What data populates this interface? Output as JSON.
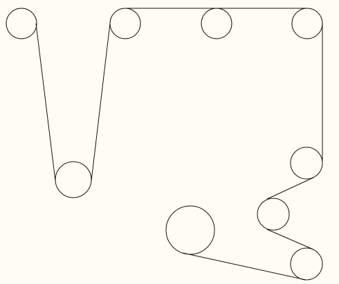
{
  "diagram": {
    "type": "belt-pulley-layout",
    "colors": {
      "background": "#fffdf3",
      "stroke": "#111111"
    },
    "pulleys": [
      {
        "id": "p1"
      },
      {
        "id": "p2"
      },
      {
        "id": "p3"
      },
      {
        "id": "p4"
      },
      {
        "id": "p5"
      },
      {
        "id": "p6"
      },
      {
        "id": "p7"
      },
      {
        "id": "p8"
      },
      {
        "id": "p9"
      }
    ]
  }
}
